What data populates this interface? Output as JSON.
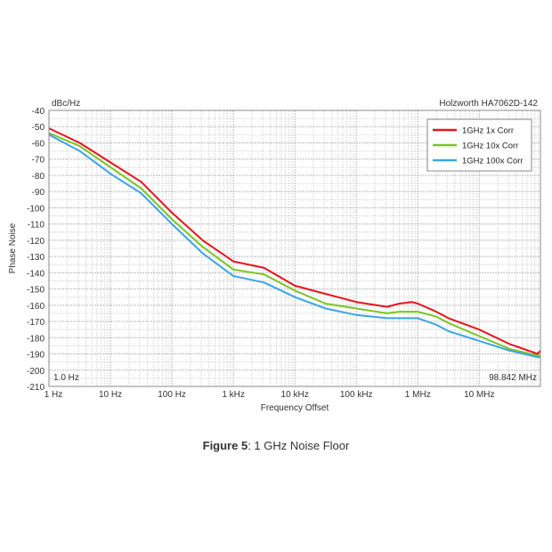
{
  "chart_data": {
    "type": "line",
    "title": "Holzworth HA7062D-142",
    "unit_label": "dBc/Hz",
    "xlabel": "Frequency Offset",
    "ylabel": "Phase Noise",
    "x_scale": "log",
    "xlim": [
      1,
      98842000
    ],
    "ylim": [
      -210,
      -40
    ],
    "grid": true,
    "legend_position": "top-right",
    "x_ticks": [
      {
        "value": 1,
        "label": "1 Hz"
      },
      {
        "value": 10,
        "label": "10 Hz"
      },
      {
        "value": 100,
        "label": "100 Hz"
      },
      {
        "value": 1000,
        "label": "1 kHz"
      },
      {
        "value": 10000,
        "label": "10 kHz"
      },
      {
        "value": 100000,
        "label": "100 kHz"
      },
      {
        "value": 1000000,
        "label": "1 MHz"
      },
      {
        "value": 10000000,
        "label": "10 MHz"
      }
    ],
    "y_ticks": [
      -40,
      -50,
      -60,
      -70,
      -80,
      -90,
      -100,
      -110,
      -120,
      -130,
      -140,
      -150,
      -160,
      -170,
      -180,
      -190,
      -200,
      -210
    ],
    "start_marker": "1.0 Hz",
    "stop_marker": "98.842 MHz",
    "x": [
      1,
      3.16,
      10,
      31.6,
      100,
      316,
      1000,
      3162,
      10000,
      31623,
      100000,
      316228,
      501187,
      794328,
      1000000,
      1995262,
      3162278,
      10000000,
      31622777,
      89125094,
      98842000
    ],
    "series": [
      {
        "name": "1GHz 1x Corr",
        "color": "#e8141c",
        "values": [
          -51,
          -60,
          -72,
          -84,
          -103,
          -120,
          -133,
          -137,
          -148,
          -153,
          -158,
          -161,
          -159,
          -158,
          -159,
          -164,
          -168,
          -175,
          -184,
          -190,
          -188
        ]
      },
      {
        "name": "1GHz 10x Corr",
        "color": "#7dc423",
        "values": [
          -54,
          -62,
          -75,
          -88,
          -107,
          -124,
          -138,
          -141,
          -151,
          -159,
          -162,
          -165,
          -164,
          -164,
          -164,
          -167,
          -171,
          -179,
          -187,
          -191,
          -191
        ]
      },
      {
        "name": "1GHz 100x Corr",
        "color": "#3ba5e6",
        "values": [
          -55,
          -65,
          -79,
          -91,
          -110,
          -128,
          -142,
          -146,
          -155,
          -162,
          -166,
          -168,
          -168,
          -168,
          -168,
          -172,
          -176,
          -182,
          -188,
          -192,
          -192
        ]
      }
    ]
  },
  "caption": {
    "label": "Figure 5",
    "text": ": 1 GHz Noise Floor"
  }
}
